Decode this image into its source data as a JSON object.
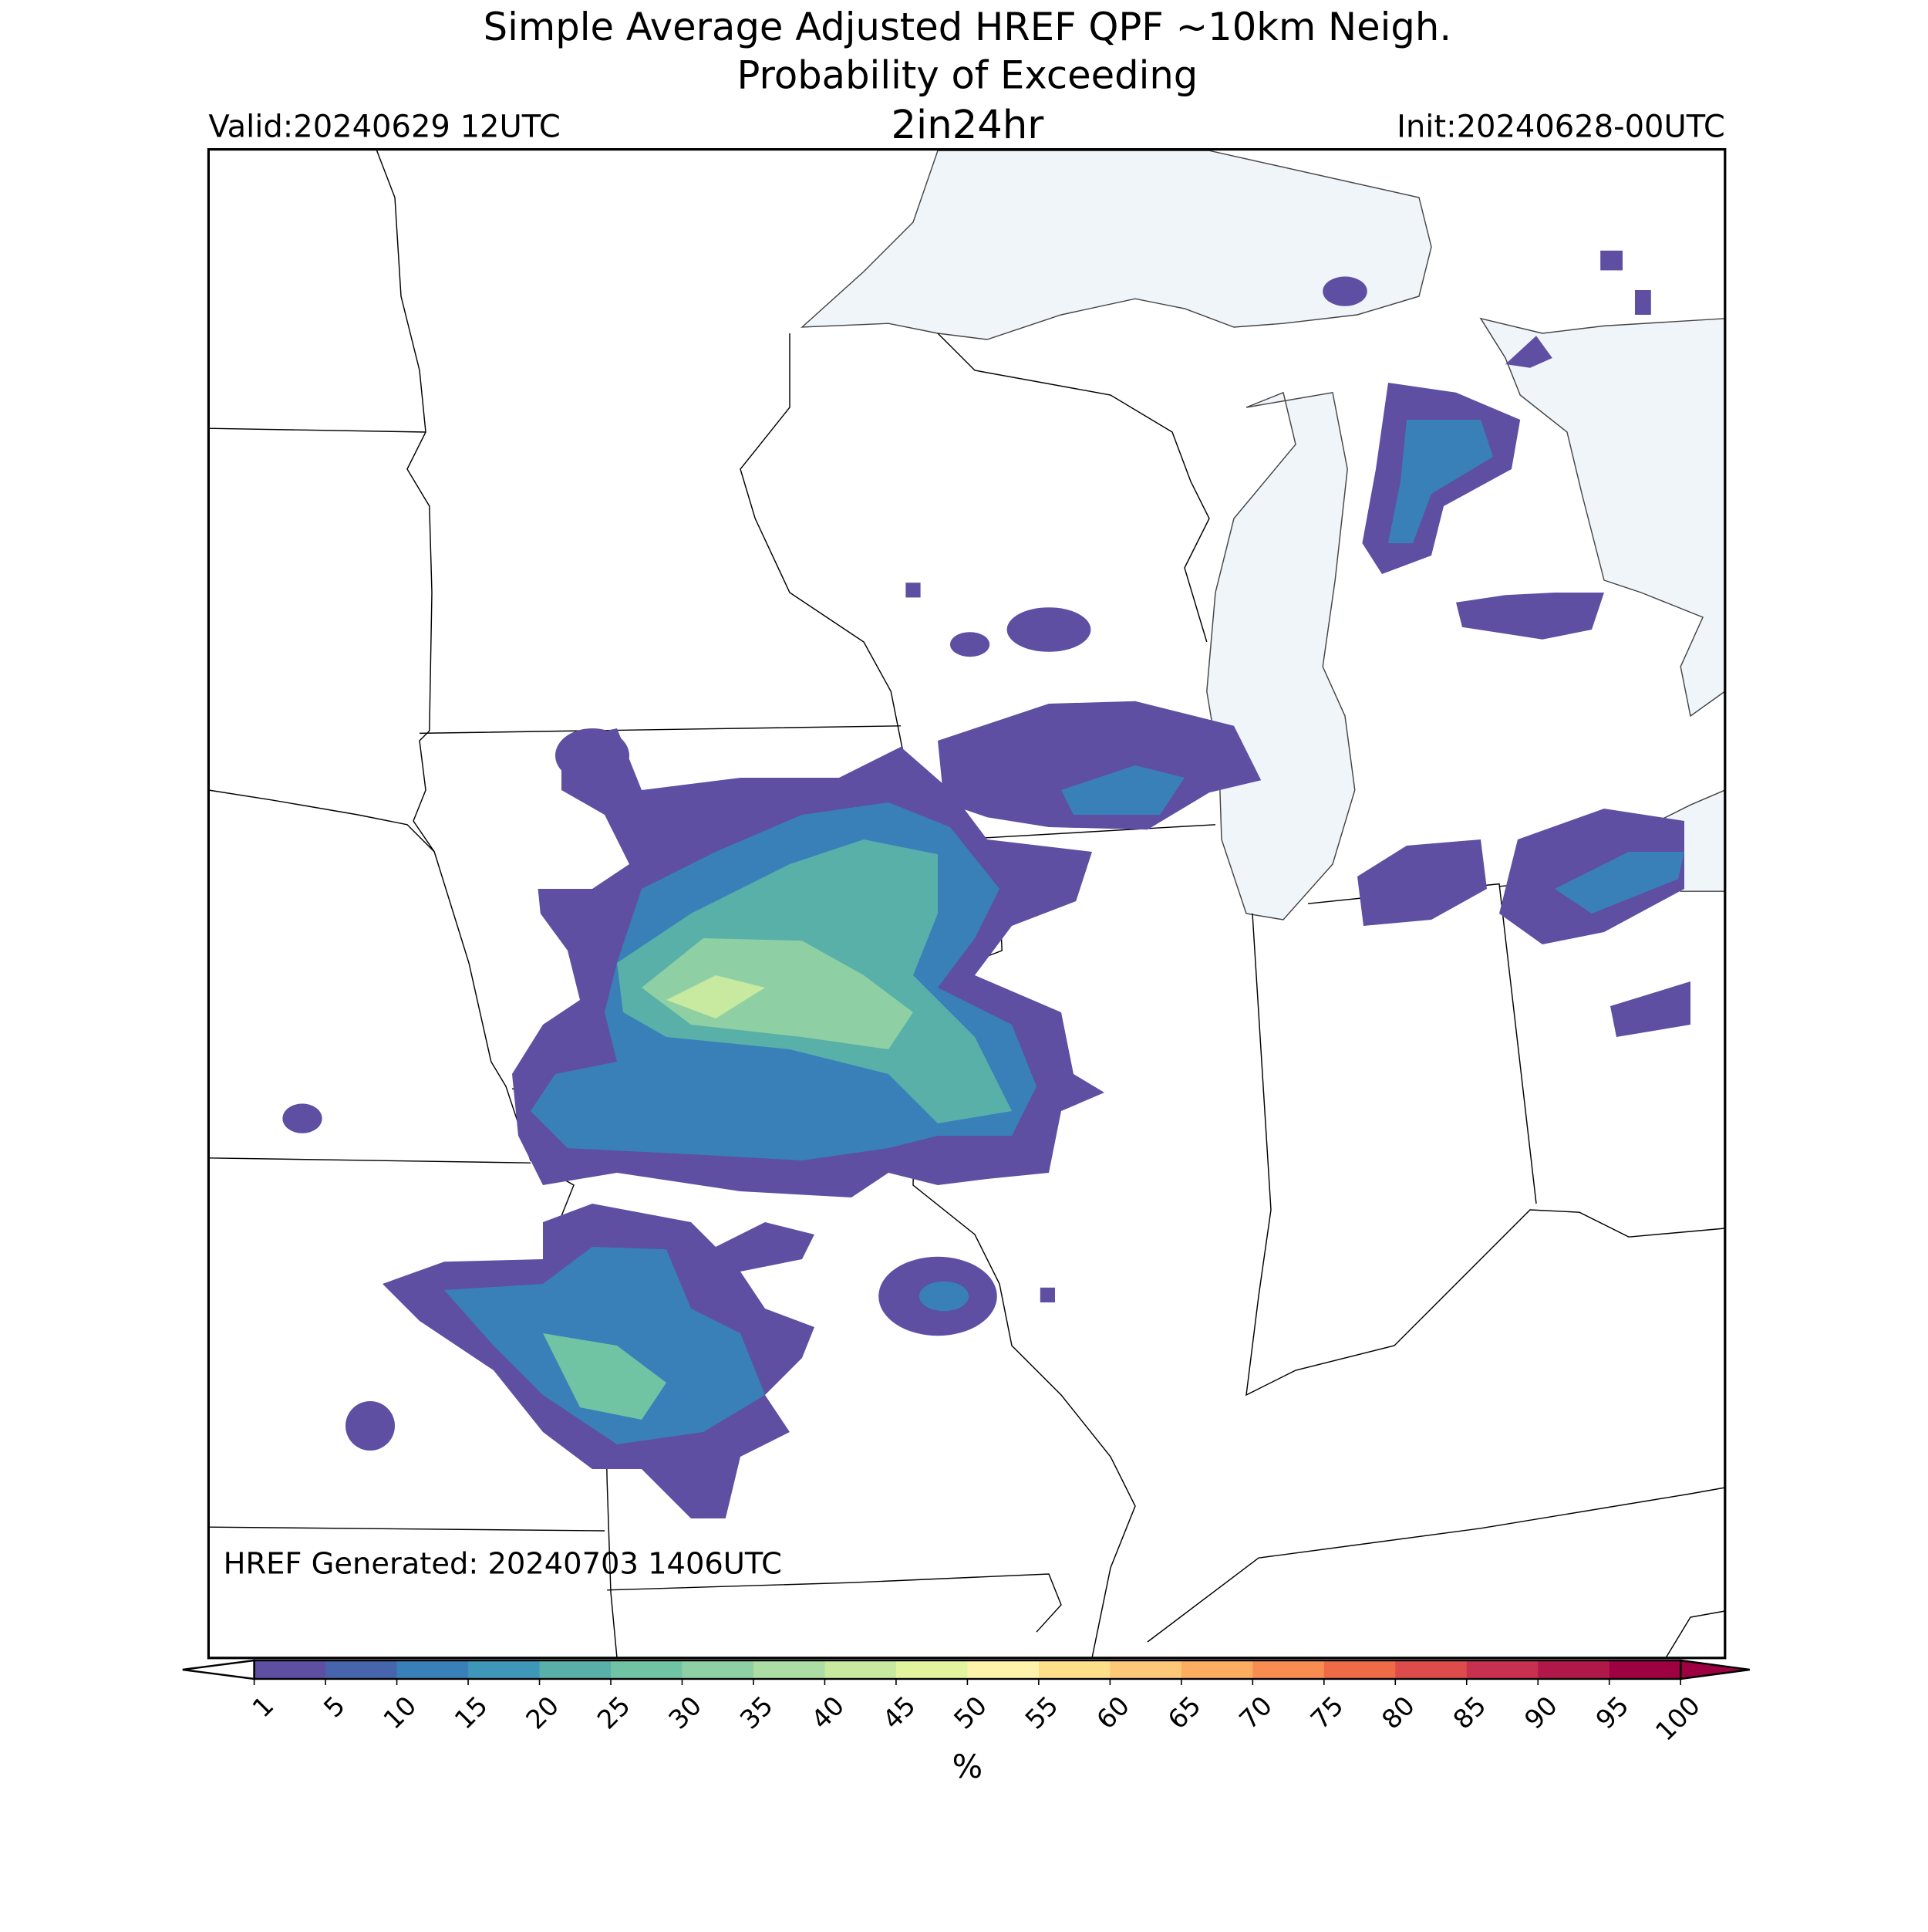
{
  "title": "Simple Average Adjusted HREF QPF ~10km Neigh.",
  "subtitle": "Probability of Exceeding",
  "threshold": "2in24hr",
  "valid": "Valid:20240629 12UTC",
  "init": "Init:20240628-00UTC",
  "generated": "HREF Generated: 20240703 1406UTC",
  "colorbar": {
    "label": "%",
    "ticks": [
      1,
      5,
      10,
      15,
      20,
      25,
      30,
      35,
      40,
      45,
      50,
      55,
      60,
      65,
      70,
      75,
      80,
      85,
      90,
      95,
      100
    ],
    "colors": [
      "#5e4fa2",
      "#4665ad",
      "#3980b9",
      "#3e96b8",
      "#58b0a9",
      "#70c4a4",
      "#8ed0a4",
      "#abdda4",
      "#c7e9a0",
      "#e3f49e",
      "#fff2aa",
      "#fee08b",
      "#fdc877",
      "#fdad60",
      "#f88d51",
      "#ef6a46",
      "#dd4b4b",
      "#c7304f",
      "#b1184a",
      "#9e0142"
    ]
  }
}
